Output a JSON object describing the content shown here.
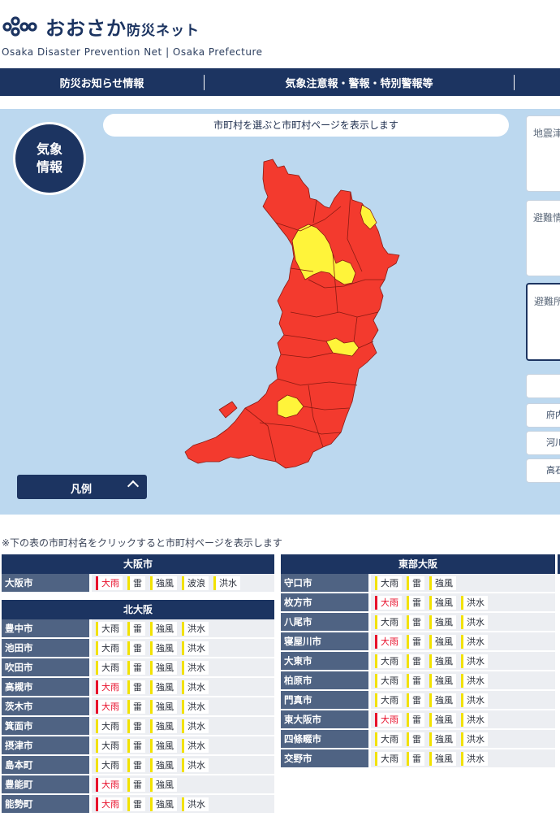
{
  "brand": {
    "title_main": "おおさか",
    "title_small": "防災ネット",
    "subtitle": "Osaka Disaster Prevention Net | Osaka Prefecture"
  },
  "nav": {
    "items": [
      "防災お知らせ情報",
      "気象注意報・警報・特別警報等"
    ]
  },
  "panel": {
    "hint": "市町村を選ぶと市町村ページを表示します",
    "badge_line1": "気象",
    "badge_line2": "情報",
    "legend_label": "凡例",
    "side_boxes": [
      "地震津",
      "避難情",
      "避難所"
    ],
    "side_buttons": [
      "府内",
      "河川",
      "高石"
    ]
  },
  "map_colors": {
    "warning": "#f33a2e",
    "advisory": "#fff43a",
    "border": "#8a1a12"
  },
  "note": "※下の表の市町村名をクリックすると市町村ページを表示します",
  "tables": {
    "osaka_city": {
      "title": "大阪市",
      "rows": [
        {
          "name": "大阪市",
          "alerts": [
            {
              "t": "大雨",
              "lvl": "warn"
            },
            {
              "t": "雷",
              "lvl": "adv"
            },
            {
              "t": "強風",
              "lvl": "adv"
            },
            {
              "t": "波浪",
              "lvl": "adv"
            },
            {
              "t": "洪水",
              "lvl": "adv"
            }
          ]
        }
      ]
    },
    "kita_osaka": {
      "title": "北大阪",
      "rows": [
        {
          "name": "豊中市",
          "alerts": [
            {
              "t": "大雨",
              "lvl": "adv"
            },
            {
              "t": "雷",
              "lvl": "adv"
            },
            {
              "t": "強風",
              "lvl": "adv"
            },
            {
              "t": "洪水",
              "lvl": "adv"
            }
          ]
        },
        {
          "name": "池田市",
          "alerts": [
            {
              "t": "大雨",
              "lvl": "adv"
            },
            {
              "t": "雷",
              "lvl": "adv"
            },
            {
              "t": "強風",
              "lvl": "adv"
            },
            {
              "t": "洪水",
              "lvl": "adv"
            }
          ]
        },
        {
          "name": "吹田市",
          "alerts": [
            {
              "t": "大雨",
              "lvl": "adv"
            },
            {
              "t": "雷",
              "lvl": "adv"
            },
            {
              "t": "強風",
              "lvl": "adv"
            },
            {
              "t": "洪水",
              "lvl": "adv"
            }
          ]
        },
        {
          "name": "高槻市",
          "alerts": [
            {
              "t": "大雨",
              "lvl": "warn"
            },
            {
              "t": "雷",
              "lvl": "adv"
            },
            {
              "t": "強風",
              "lvl": "adv"
            },
            {
              "t": "洪水",
              "lvl": "adv"
            }
          ]
        },
        {
          "name": "茨木市",
          "alerts": [
            {
              "t": "大雨",
              "lvl": "warn"
            },
            {
              "t": "雷",
              "lvl": "adv"
            },
            {
              "t": "強風",
              "lvl": "adv"
            },
            {
              "t": "洪水",
              "lvl": "adv"
            }
          ]
        },
        {
          "name": "箕面市",
          "alerts": [
            {
              "t": "大雨",
              "lvl": "adv"
            },
            {
              "t": "雷",
              "lvl": "adv"
            },
            {
              "t": "強風",
              "lvl": "adv"
            },
            {
              "t": "洪水",
              "lvl": "adv"
            }
          ]
        },
        {
          "name": "摂津市",
          "alerts": [
            {
              "t": "大雨",
              "lvl": "adv"
            },
            {
              "t": "雷",
              "lvl": "adv"
            },
            {
              "t": "強風",
              "lvl": "adv"
            },
            {
              "t": "洪水",
              "lvl": "adv"
            }
          ]
        },
        {
          "name": "島本町",
          "alerts": [
            {
              "t": "大雨",
              "lvl": "adv"
            },
            {
              "t": "雷",
              "lvl": "adv"
            },
            {
              "t": "強風",
              "lvl": "adv"
            },
            {
              "t": "洪水",
              "lvl": "adv"
            }
          ]
        },
        {
          "name": "豊能町",
          "alerts": [
            {
              "t": "大雨",
              "lvl": "warn"
            },
            {
              "t": "雷",
              "lvl": "adv"
            },
            {
              "t": "強風",
              "lvl": "adv"
            }
          ]
        },
        {
          "name": "能勢町",
          "alerts": [
            {
              "t": "大雨",
              "lvl": "warn"
            },
            {
              "t": "雷",
              "lvl": "adv"
            },
            {
              "t": "強風",
              "lvl": "adv"
            },
            {
              "t": "洪水",
              "lvl": "adv"
            }
          ]
        }
      ]
    },
    "higashi_osaka": {
      "title": "東部大阪",
      "rows": [
        {
          "name": "守口市",
          "alerts": [
            {
              "t": "大雨",
              "lvl": "adv"
            },
            {
              "t": "雷",
              "lvl": "adv"
            },
            {
              "t": "強風",
              "lvl": "adv"
            }
          ]
        },
        {
          "name": "枚方市",
          "alerts": [
            {
              "t": "大雨",
              "lvl": "warn"
            },
            {
              "t": "雷",
              "lvl": "adv"
            },
            {
              "t": "強風",
              "lvl": "adv"
            },
            {
              "t": "洪水",
              "lvl": "adv"
            }
          ]
        },
        {
          "name": "八尾市",
          "alerts": [
            {
              "t": "大雨",
              "lvl": "adv"
            },
            {
              "t": "雷",
              "lvl": "adv"
            },
            {
              "t": "強風",
              "lvl": "adv"
            },
            {
              "t": "洪水",
              "lvl": "adv"
            }
          ]
        },
        {
          "name": "寝屋川市",
          "alerts": [
            {
              "t": "大雨",
              "lvl": "warn"
            },
            {
              "t": "雷",
              "lvl": "adv"
            },
            {
              "t": "強風",
              "lvl": "adv"
            },
            {
              "t": "洪水",
              "lvl": "adv"
            }
          ]
        },
        {
          "name": "大東市",
          "alerts": [
            {
              "t": "大雨",
              "lvl": "adv"
            },
            {
              "t": "雷",
              "lvl": "adv"
            },
            {
              "t": "強風",
              "lvl": "adv"
            },
            {
              "t": "洪水",
              "lvl": "adv"
            }
          ]
        },
        {
          "name": "柏原市",
          "alerts": [
            {
              "t": "大雨",
              "lvl": "adv"
            },
            {
              "t": "雷",
              "lvl": "adv"
            },
            {
              "t": "強風",
              "lvl": "adv"
            },
            {
              "t": "洪水",
              "lvl": "adv"
            }
          ]
        },
        {
          "name": "門真市",
          "alerts": [
            {
              "t": "大雨",
              "lvl": "adv"
            },
            {
              "t": "雷",
              "lvl": "adv"
            },
            {
              "t": "強風",
              "lvl": "adv"
            },
            {
              "t": "洪水",
              "lvl": "adv"
            }
          ]
        },
        {
          "name": "東大阪市",
          "alerts": [
            {
              "t": "大雨",
              "lvl": "warn"
            },
            {
              "t": "雷",
              "lvl": "adv"
            },
            {
              "t": "強風",
              "lvl": "adv"
            },
            {
              "t": "洪水",
              "lvl": "adv"
            }
          ]
        },
        {
          "name": "四條畷市",
          "alerts": [
            {
              "t": "大雨",
              "lvl": "adv"
            },
            {
              "t": "雷",
              "lvl": "adv"
            },
            {
              "t": "強風",
              "lvl": "adv"
            },
            {
              "t": "洪水",
              "lvl": "adv"
            }
          ]
        },
        {
          "name": "交野市",
          "alerts": [
            {
              "t": "大雨",
              "lvl": "adv"
            },
            {
              "t": "雷",
              "lvl": "adv"
            },
            {
              "t": "強風",
              "lvl": "adv"
            },
            {
              "t": "洪水",
              "lvl": "adv"
            }
          ]
        }
      ]
    }
  }
}
